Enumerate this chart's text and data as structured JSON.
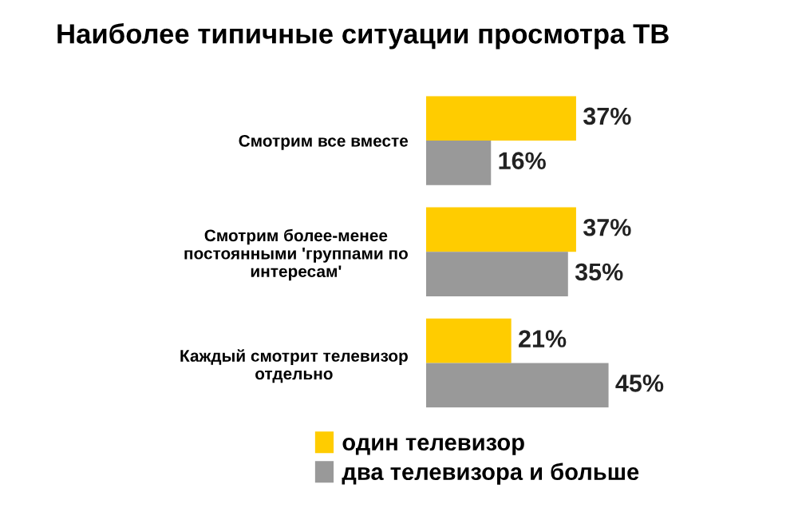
{
  "chart_data": {
    "type": "bar",
    "orientation": "horizontal",
    "title": "Наиболее типичные ситуации просмотра ТВ",
    "categories": [
      "Смотрим все вместе",
      "Смотрим более-менее\nпостоянными 'группами по\nинтересам'",
      "Каждый смотрит телевизор\nотдельно"
    ],
    "series": [
      {
        "name": "один телевизор",
        "color": "#ffcc00",
        "values": [
          37,
          37,
          21
        ],
        "value_labels": [
          "37%",
          "37%",
          "21%"
        ]
      },
      {
        "name": "два телевизора и больше",
        "color": "#999999",
        "values": [
          16,
          35,
          45
        ],
        "value_labels": [
          "16%",
          "35%",
          "45%"
        ]
      }
    ],
    "legend": "bottom",
    "grid": false
  }
}
